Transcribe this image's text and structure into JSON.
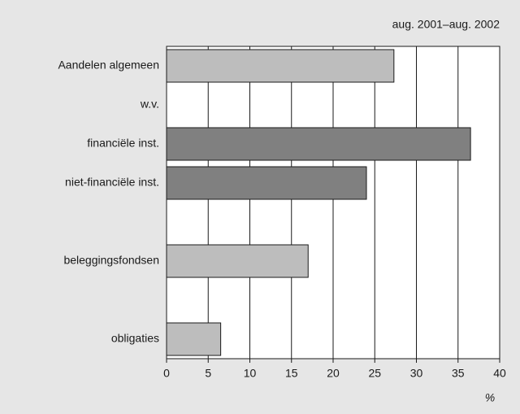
{
  "chart_data": {
    "type": "hbar",
    "subtitle": "aug. 2001–aug. 2002",
    "x_label": "%",
    "categories": [
      "Aandelen algemeen",
      "w.v.",
      "financiële inst.",
      "niet-financiële inst.",
      null,
      "beleggingsfondsen",
      null,
      "obligaties"
    ],
    "values": [
      27.3,
      null,
      36.5,
      24,
      null,
      17,
      null,
      6.5
    ],
    "colors": [
      "#bdbdbd",
      null,
      "#808080",
      "#808080",
      null,
      "#bdbdbd",
      null,
      "#bdbdbd"
    ],
    "xlim": [
      0,
      40
    ],
    "xticks": [
      0,
      5,
      10,
      15,
      20,
      25,
      30,
      35,
      40
    ],
    "grid": true
  }
}
